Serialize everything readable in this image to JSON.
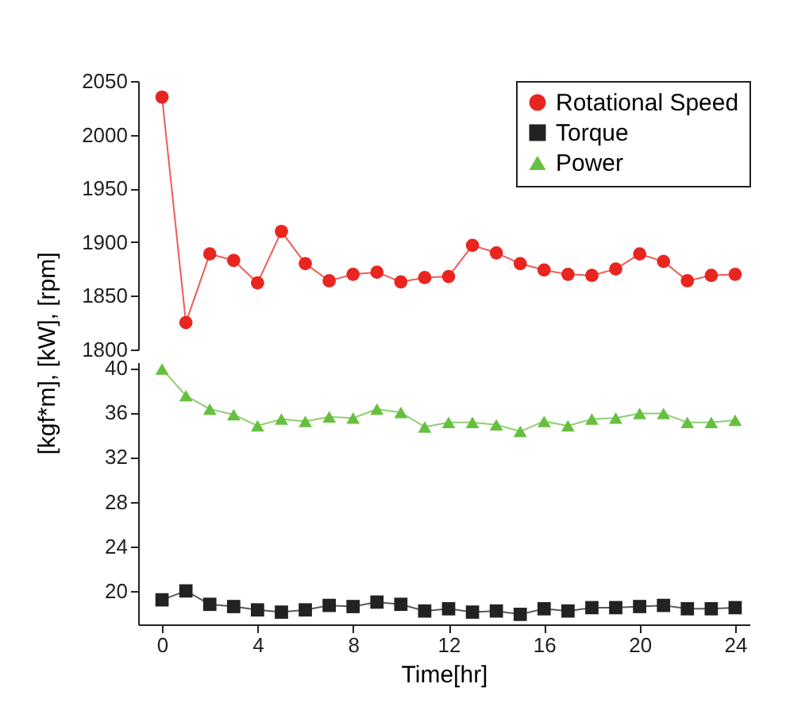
{
  "chart_data": [
    {
      "type": "line",
      "x": [
        0,
        1,
        2,
        3,
        4,
        5,
        6,
        7,
        8,
        9,
        10,
        11,
        12,
        13,
        14,
        15,
        16,
        17,
        18,
        19,
        20,
        21,
        22,
        23,
        24
      ],
      "ylim": [
        1800,
        2050
      ],
      "yticks": [
        1800,
        1850,
        1900,
        1950,
        2000,
        2050
      ],
      "grid": false,
      "legend": "top right",
      "tick_labels": "y",
      "series": [
        {
          "name": "Rotational Speed",
          "color": "#e8251f",
          "marker": "circle",
          "values": [
            2035,
            1825,
            1889,
            1883,
            1862,
            1910,
            1880,
            1864,
            1870,
            1872,
            1863,
            1867,
            1868,
            1897,
            1890,
            1880,
            1874,
            1870,
            1869,
            1875,
            1889,
            1882,
            1864,
            1869,
            1870
          ]
        }
      ]
    },
    {
      "type": "line",
      "x": [
        0,
        1,
        2,
        3,
        4,
        5,
        6,
        7,
        8,
        9,
        10,
        11,
        12,
        13,
        14,
        15,
        16,
        17,
        18,
        19,
        20,
        21,
        22,
        23,
        24
      ],
      "xlim": [
        -1,
        24.6
      ],
      "ylim": [
        17,
        40.5
      ],
      "yticks": [
        20,
        24,
        28,
        32,
        36,
        40
      ],
      "xticks": [
        0,
        4,
        8,
        12,
        16,
        20,
        24
      ],
      "grid": false,
      "legend": "top right",
      "xlabel": "Time[hr]",
      "ylabel": "[kgf*m], [kW], [rpm]",
      "series": [
        {
          "name": "Torque",
          "color": "#222222",
          "marker": "square",
          "values": [
            19.2,
            20.0,
            18.8,
            18.6,
            18.3,
            18.1,
            18.3,
            18.7,
            18.6,
            19.0,
            18.8,
            18.2,
            18.4,
            18.1,
            18.2,
            17.9,
            18.4,
            18.2,
            18.5,
            18.5,
            18.6,
            18.7,
            18.4,
            18.4,
            18.5
          ]
        },
        {
          "name": "Power",
          "color": "#66c03f",
          "marker": "triangle",
          "values": [
            39.9,
            37.5,
            36.3,
            35.8,
            34.8,
            35.4,
            35.2,
            35.6,
            35.5,
            36.3,
            36.0,
            34.7,
            35.1,
            35.1,
            34.9,
            34.3,
            35.2,
            34.8,
            35.4,
            35.5,
            35.9,
            35.9,
            35.1,
            35.1,
            35.3
          ]
        }
      ]
    }
  ]
}
